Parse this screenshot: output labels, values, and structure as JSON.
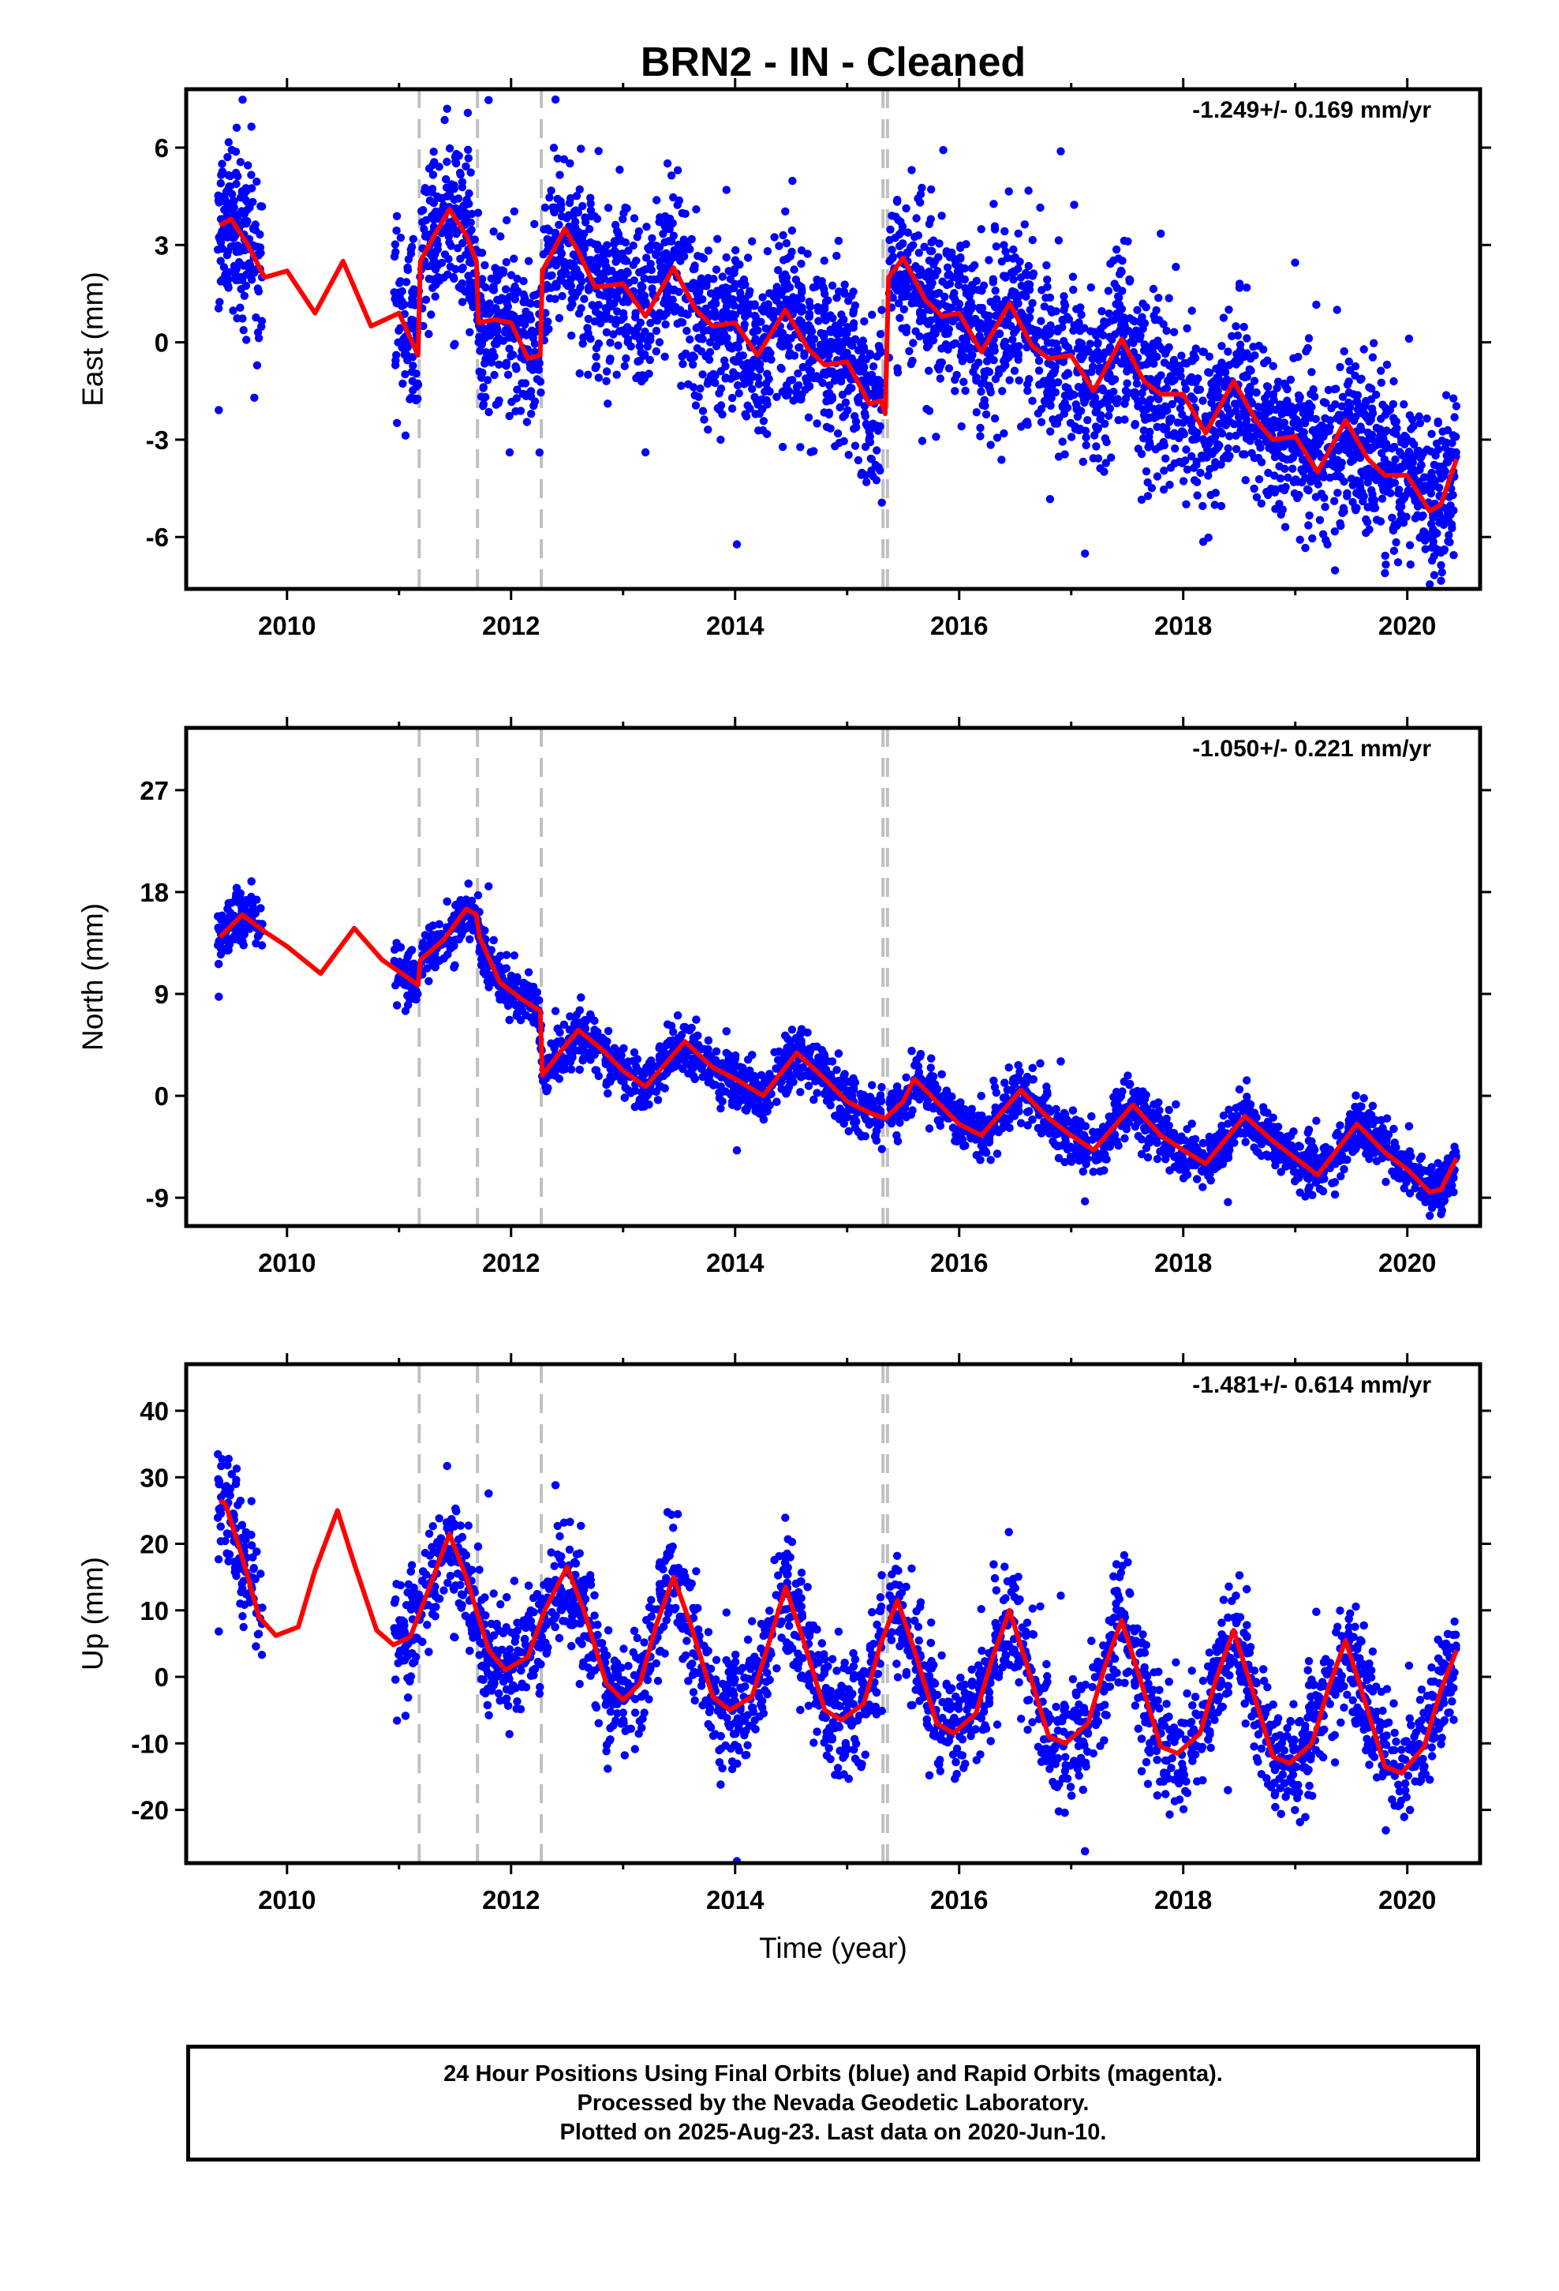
{
  "title": "BRN2  - IN - Cleaned",
  "colors": {
    "data": "#0000ff",
    "fit": "#ff0000",
    "breaks": "#c0c0c0",
    "frame": "#000000"
  },
  "chart_data": [
    {
      "type": "scatter",
      "component": "east",
      "ylabel": "East (mm)",
      "xlabel": "",
      "rate": "-1.249+/- 0.169 mm/yr",
      "xlim": [
        2009.1,
        2020.65
      ],
      "ylim": [
        -7.6,
        7.8
      ],
      "xticks": [
        2010,
        2012,
        2014,
        2016,
        2018,
        2020
      ],
      "xtick_labels": [
        "2010",
        "2012",
        "2014",
        "2016",
        "2018",
        "2020"
      ],
      "yticks": [
        6,
        3,
        0,
        -3,
        -6
      ],
      "ytick_labels": [
        "6",
        "3",
        "0",
        "-3",
        "-6"
      ],
      "breaks": [
        2011.18,
        2011.7,
        2012.27,
        2015.32,
        2015.36
      ],
      "fit_points": [
        [
          2009.4,
          3.6
        ],
        [
          2009.5,
          3.8
        ],
        [
          2009.65,
          3.0
        ],
        [
          2009.8,
          2.0
        ],
        [
          2010.0,
          2.2
        ],
        [
          2010.25,
          0.9
        ],
        [
          2010.5,
          2.5
        ],
        [
          2010.75,
          0.5
        ],
        [
          2011.0,
          0.9
        ],
        [
          2011.17,
          -0.4
        ],
        [
          2011.19,
          2.5
        ],
        [
          2011.3,
          3.2
        ],
        [
          2011.45,
          4.1
        ],
        [
          2011.6,
          3.3
        ],
        [
          2011.69,
          2.5
        ],
        [
          2011.71,
          0.6
        ],
        [
          2011.85,
          0.7
        ],
        [
          2012.0,
          0.6
        ],
        [
          2012.15,
          -0.5
        ],
        [
          2012.26,
          -0.4
        ],
        [
          2012.28,
          2.2
        ],
        [
          2012.48,
          3.5
        ],
        [
          2012.6,
          2.8
        ],
        [
          2012.75,
          1.7
        ],
        [
          2013.0,
          1.8
        ],
        [
          2013.2,
          0.8
        ],
        [
          2013.45,
          2.3
        ],
        [
          2013.65,
          1.0
        ],
        [
          2013.8,
          0.5
        ],
        [
          2014.0,
          0.6
        ],
        [
          2014.2,
          -0.4
        ],
        [
          2014.45,
          1.0
        ],
        [
          2014.65,
          -0.2
        ],
        [
          2014.8,
          -0.7
        ],
        [
          2015.0,
          -0.6
        ],
        [
          2015.2,
          -1.9
        ],
        [
          2015.3,
          -1.8
        ],
        [
          2015.34,
          -2.2
        ],
        [
          2015.37,
          2.0
        ],
        [
          2015.5,
          2.6
        ],
        [
          2015.7,
          1.3
        ],
        [
          2015.85,
          0.8
        ],
        [
          2016.0,
          0.9
        ],
        [
          2016.2,
          -0.3
        ],
        [
          2016.45,
          1.2
        ],
        [
          2016.65,
          -0.1
        ],
        [
          2016.8,
          -0.5
        ],
        [
          2017.0,
          -0.4
        ],
        [
          2017.2,
          -1.5
        ],
        [
          2017.45,
          0.1
        ],
        [
          2017.65,
          -1.2
        ],
        [
          2017.8,
          -1.6
        ],
        [
          2018.0,
          -1.6
        ],
        [
          2018.2,
          -2.8
        ],
        [
          2018.45,
          -1.2
        ],
        [
          2018.65,
          -2.4
        ],
        [
          2018.8,
          -3.0
        ],
        [
          2019.0,
          -2.9
        ],
        [
          2019.2,
          -4.0
        ],
        [
          2019.45,
          -2.4
        ],
        [
          2019.65,
          -3.6
        ],
        [
          2019.8,
          -4.1
        ],
        [
          2020.0,
          -4.1
        ],
        [
          2020.2,
          -5.2
        ],
        [
          2020.3,
          -5.0
        ],
        [
          2020.44,
          -3.6
        ]
      ],
      "data_spans": [
        [
          2009.38,
          2009.78
        ],
        [
          2010.95,
          2015.31
        ],
        [
          2015.37,
          2020.44
        ]
      ],
      "n_points": 3900,
      "noise": 1.3
    },
    {
      "type": "scatter",
      "component": "north",
      "ylabel": "North (mm)",
      "xlabel": "",
      "rate": "-1.050+/- 0.221 mm/yr",
      "xlim": [
        2009.1,
        2020.65
      ],
      "ylim": [
        -11.5,
        32.5
      ],
      "xticks": [
        2010,
        2012,
        2014,
        2016,
        2018,
        2020
      ],
      "xtick_labels": [
        "2010",
        "2012",
        "2014",
        "2016",
        "2018",
        "2020"
      ],
      "yticks": [
        27,
        18,
        9,
        0,
        -9
      ],
      "ytick_labels": [
        "27",
        "18",
        "9",
        "0",
        "-9"
      ],
      "breaks": [
        2011.18,
        2011.7,
        2012.27,
        2015.32,
        2015.36
      ],
      "fit_points": [
        [
          2009.4,
          14.0
        ],
        [
          2009.6,
          16.0
        ],
        [
          2009.8,
          14.5
        ],
        [
          2010.0,
          13.2
        ],
        [
          2010.3,
          10.8
        ],
        [
          2010.6,
          14.8
        ],
        [
          2010.85,
          12.0
        ],
        [
          2011.17,
          9.8
        ],
        [
          2011.19,
          12.0
        ],
        [
          2011.4,
          13.8
        ],
        [
          2011.6,
          16.5
        ],
        [
          2011.69,
          16.0
        ],
        [
          2011.72,
          14.0
        ],
        [
          2011.9,
          10.0
        ],
        [
          2012.1,
          8.5
        ],
        [
          2012.26,
          7.5
        ],
        [
          2012.28,
          1.8
        ],
        [
          2012.45,
          4.0
        ],
        [
          2012.6,
          5.8
        ],
        [
          2012.8,
          4.2
        ],
        [
          2013.0,
          2.2
        ],
        [
          2013.2,
          0.8
        ],
        [
          2013.55,
          4.8
        ],
        [
          2013.8,
          2.5
        ],
        [
          2014.0,
          1.5
        ],
        [
          2014.25,
          0.0
        ],
        [
          2014.55,
          3.8
        ],
        [
          2014.8,
          1.5
        ],
        [
          2015.0,
          -0.5
        ],
        [
          2015.2,
          -1.5
        ],
        [
          2015.34,
          -2.0
        ],
        [
          2015.5,
          -0.5
        ],
        [
          2015.6,
          1.5
        ],
        [
          2015.8,
          -0.5
        ],
        [
          2016.0,
          -2.5
        ],
        [
          2016.2,
          -3.5
        ],
        [
          2016.55,
          0.5
        ],
        [
          2016.8,
          -2.0
        ],
        [
          2017.0,
          -3.5
        ],
        [
          2017.2,
          -4.8
        ],
        [
          2017.55,
          -0.8
        ],
        [
          2017.8,
          -3.5
        ],
        [
          2018.0,
          -4.8
        ],
        [
          2018.2,
          -6.0
        ],
        [
          2018.55,
          -1.8
        ],
        [
          2018.8,
          -4.0
        ],
        [
          2019.0,
          -5.5
        ],
        [
          2019.2,
          -7.0
        ],
        [
          2019.55,
          -2.5
        ],
        [
          2019.8,
          -5.0
        ],
        [
          2020.0,
          -6.5
        ],
        [
          2020.2,
          -8.5
        ],
        [
          2020.3,
          -8.3
        ],
        [
          2020.44,
          -5.5
        ]
      ],
      "data_spans": [
        [
          2009.38,
          2009.78
        ],
        [
          2010.95,
          2015.31
        ],
        [
          2015.37,
          2020.44
        ]
      ],
      "n_points": 3900,
      "noise": 1.2
    },
    {
      "type": "scatter",
      "component": "up",
      "ylabel": "Up (mm)",
      "xlabel": "Time (year)",
      "rate": "-1.481+/- 0.614 mm/yr",
      "xlim": [
        2009.1,
        2020.65
      ],
      "ylim": [
        -28,
        47
      ],
      "xticks": [
        2010,
        2012,
        2014,
        2016,
        2018,
        2020
      ],
      "xtick_labels": [
        "2010",
        "2012",
        "2014",
        "2016",
        "2018",
        "2020"
      ],
      "yticks": [
        40,
        30,
        20,
        10,
        0,
        -10,
        -20
      ],
      "ytick_labels": [
        "40",
        "30",
        "20",
        "10",
        "0",
        "-10",
        "-20"
      ],
      "breaks": [
        2011.18,
        2011.7,
        2012.27,
        2015.32,
        2015.36
      ],
      "fit_points": [
        [
          2009.4,
          26.5
        ],
        [
          2009.45,
          26.0
        ],
        [
          2009.6,
          18.0
        ],
        [
          2009.75,
          9.0
        ],
        [
          2009.9,
          6.2
        ],
        [
          2010.1,
          7.5
        ],
        [
          2010.25,
          16.0
        ],
        [
          2010.45,
          25.0
        ],
        [
          2010.6,
          17.0
        ],
        [
          2010.8,
          7.0
        ],
        [
          2010.95,
          4.8
        ],
        [
          2011.1,
          6.0
        ],
        [
          2011.25,
          12.5
        ],
        [
          2011.45,
          21.5
        ],
        [
          2011.6,
          15.0
        ],
        [
          2011.8,
          4.0
        ],
        [
          2011.95,
          1.0
        ],
        [
          2012.15,
          3.0
        ],
        [
          2012.3,
          10.0
        ],
        [
          2012.5,
          16.5
        ],
        [
          2012.65,
          10.0
        ],
        [
          2012.85,
          -1.0
        ],
        [
          2013.0,
          -3.5
        ],
        [
          2013.15,
          -1.0
        ],
        [
          2013.3,
          8.0
        ],
        [
          2013.45,
          15.0
        ],
        [
          2013.6,
          8.0
        ],
        [
          2013.8,
          -3.0
        ],
        [
          2013.95,
          -5.0
        ],
        [
          2014.15,
          -3.0
        ],
        [
          2014.3,
          5.0
        ],
        [
          2014.45,
          13.5
        ],
        [
          2014.6,
          6.0
        ],
        [
          2014.8,
          -5.0
        ],
        [
          2014.95,
          -6.5
        ],
        [
          2015.15,
          -4.0
        ],
        [
          2015.3,
          5.0
        ],
        [
          2015.45,
          11.5
        ],
        [
          2015.6,
          4.0
        ],
        [
          2015.8,
          -7.0
        ],
        [
          2015.95,
          -8.5
        ],
        [
          2016.15,
          -5.5
        ],
        [
          2016.3,
          3.0
        ],
        [
          2016.45,
          10.0
        ],
        [
          2016.6,
          2.0
        ],
        [
          2016.8,
          -9.0
        ],
        [
          2016.95,
          -10.0
        ],
        [
          2017.15,
          -7.0
        ],
        [
          2017.3,
          1.5
        ],
        [
          2017.45,
          8.5
        ],
        [
          2017.6,
          0.5
        ],
        [
          2017.8,
          -10.5
        ],
        [
          2017.95,
          -11.5
        ],
        [
          2018.15,
          -8.5
        ],
        [
          2018.3,
          0.0
        ],
        [
          2018.45,
          7.0
        ],
        [
          2018.6,
          -1.0
        ],
        [
          2018.8,
          -12.0
        ],
        [
          2018.95,
          -13.0
        ],
        [
          2019.15,
          -10.0
        ],
        [
          2019.3,
          -1.5
        ],
        [
          2019.45,
          5.5
        ],
        [
          2019.6,
          -2.5
        ],
        [
          2019.8,
          -13.5
        ],
        [
          2019.95,
          -14.5
        ],
        [
          2020.15,
          -10.5
        ],
        [
          2020.3,
          -2.0
        ],
        [
          2020.44,
          4.0
        ]
      ],
      "data_spans": [
        [
          2009.38,
          2009.78
        ],
        [
          2010.95,
          2015.31
        ],
        [
          2015.37,
          2020.44
        ]
      ],
      "n_points": 3900,
      "noise": 4.5
    }
  ],
  "footer": {
    "line1": "24 Hour Positions Using Final Orbits (blue) and Rapid Orbits (magenta).",
    "line2": "Processed by the Nevada Geodetic Laboratory.",
    "line3": "Plotted on 2025-Aug-23. Last data on 2020-Jun-10."
  }
}
